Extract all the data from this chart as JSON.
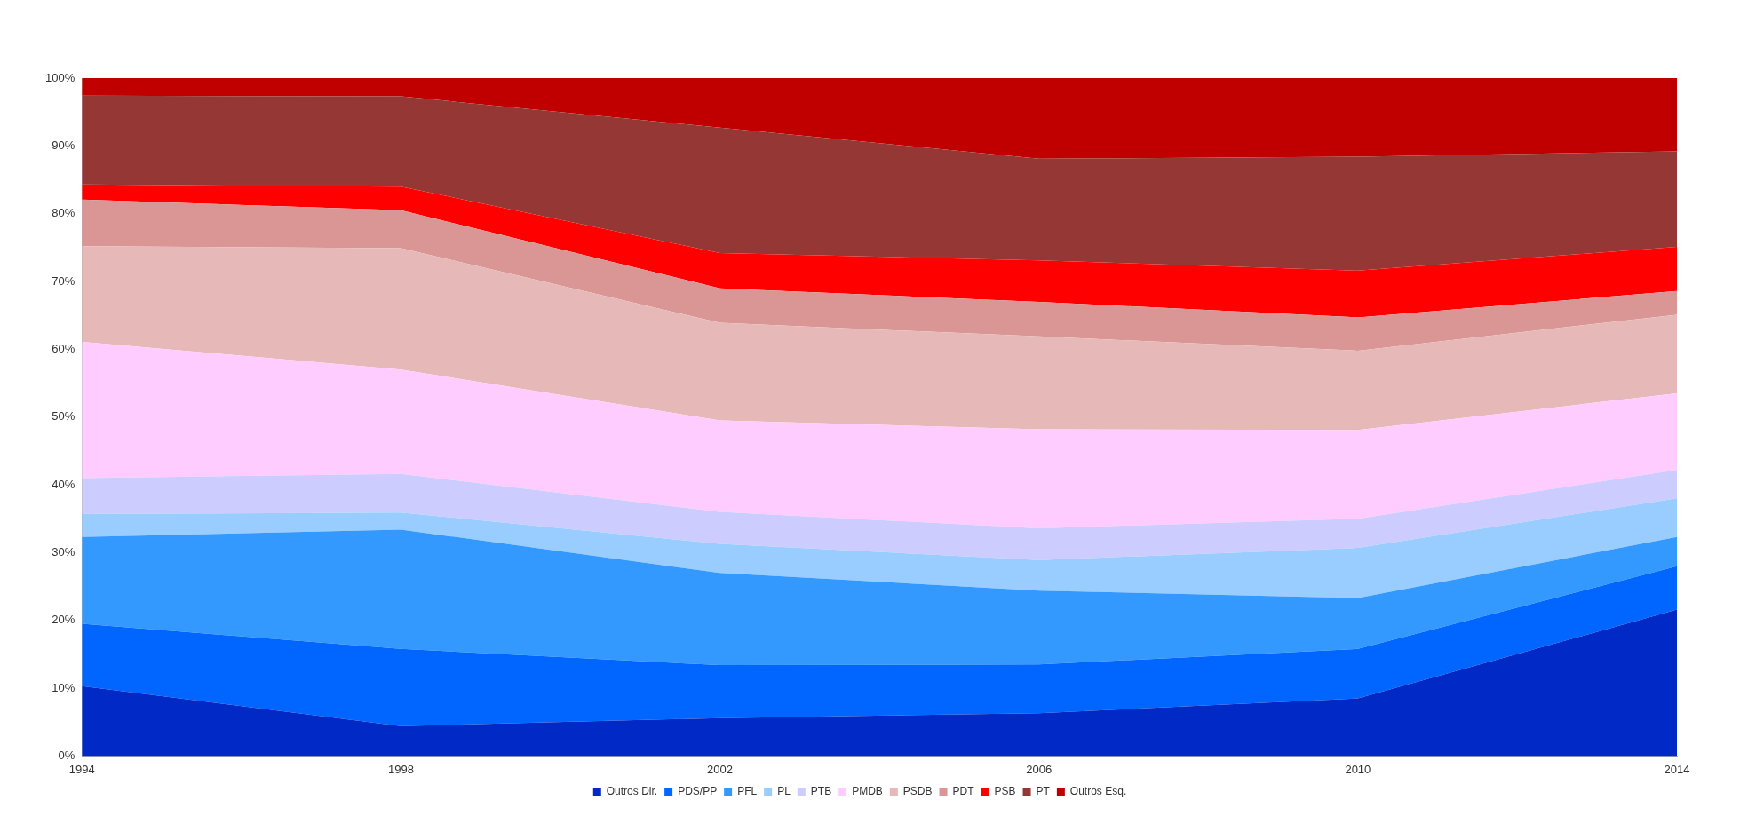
{
  "chart_data": {
    "type": "area",
    "stacked": true,
    "categories": [
      "1994",
      "1998",
      "2002",
      "2006",
      "2010",
      "2014"
    ],
    "ylim": [
      0,
      100
    ],
    "yticks": [
      {
        "value": 0,
        "label": "0%"
      },
      {
        "value": 10,
        "label": "10%"
      },
      {
        "value": 20,
        "label": "20%"
      },
      {
        "value": 30,
        "label": "30%"
      },
      {
        "value": 40,
        "label": "40%"
      },
      {
        "value": 50,
        "label": "50%"
      },
      {
        "value": 60,
        "label": "60%"
      },
      {
        "value": 70,
        "label": "70%"
      },
      {
        "value": 80,
        "label": "80%"
      },
      {
        "value": 90,
        "label": "90%"
      },
      {
        "value": 100,
        "label": "100%"
      }
    ],
    "grid": false,
    "legend": "bottom",
    "series": [
      {
        "name": "Outros Dir.",
        "color": "#0029c6",
        "values": [
          10.3,
          4.4,
          5.6,
          6.3,
          8.5,
          21.6
        ]
      },
      {
        "name": "PDS/PP",
        "color": "#0066ff",
        "values": [
          9.2,
          11.4,
          7.8,
          7.2,
          7.3,
          6.4
        ]
      },
      {
        "name": "PFL",
        "color": "#3399ff",
        "values": [
          12.8,
          17.6,
          13.6,
          10.9,
          7.5,
          4.3
        ]
      },
      {
        "name": "PL",
        "color": "#99ccff",
        "values": [
          3.4,
          2.5,
          4.3,
          4.5,
          7.4,
          5.7
        ]
      },
      {
        "name": "PTB",
        "color": "#ccccff",
        "values": [
          5.3,
          5.7,
          4.7,
          4.7,
          4.3,
          4.2
        ]
      },
      {
        "name": "PMDB",
        "color": "#ffccff",
        "values": [
          20.1,
          15.4,
          13.5,
          14.6,
          13.1,
          11.3
        ]
      },
      {
        "name": "PSDB",
        "color": "#e6b9b8",
        "values": [
          14.1,
          17.9,
          14.4,
          13.7,
          11.7,
          11.6
        ]
      },
      {
        "name": "PDT",
        "color": "#d99694",
        "values": [
          6.9,
          5.6,
          5.1,
          5.1,
          4.9,
          3.5
        ]
      },
      {
        "name": "PSB",
        "color": "#ff0000",
        "values": [
          2.2,
          3.5,
          5.2,
          6.1,
          6.9,
          6.5
        ]
      },
      {
        "name": "PT",
        "color": "#953735",
        "values": [
          13.1,
          13.3,
          18.5,
          15.0,
          16.8,
          14.1
        ]
      },
      {
        "name": "Outros Esq.",
        "color": "#c00000",
        "values": [
          2.6,
          2.7,
          7.3,
          11.9,
          11.6,
          10.8
        ]
      }
    ]
  }
}
